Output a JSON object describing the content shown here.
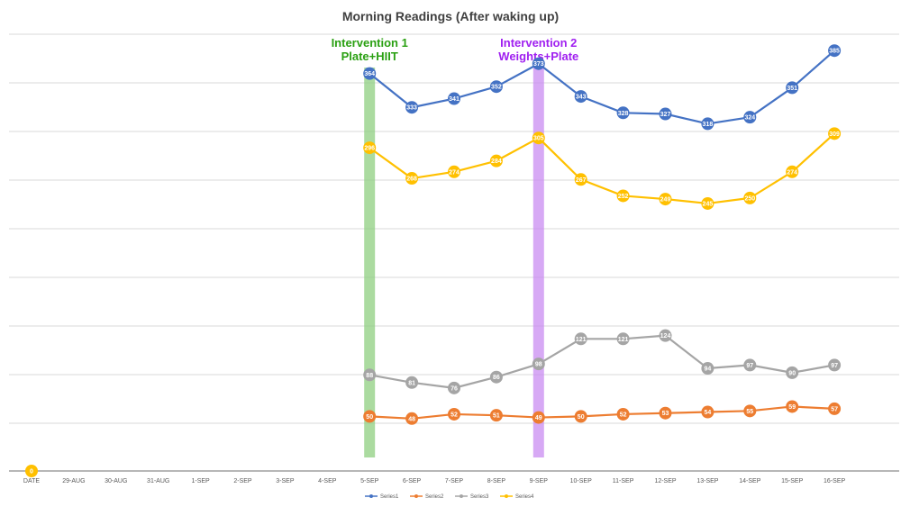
{
  "chart_data": {
    "type": "line",
    "title": "Morning Readings (After waking up)",
    "categories": [
      "DATE",
      "29-AUG",
      "30-AUG",
      "31-AUG",
      "1-SEP",
      "2-SEP",
      "3-SEP",
      "4-SEP",
      "5-SEP",
      "6-SEP",
      "7-SEP",
      "8-SEP",
      "9-SEP",
      "10-SEP",
      "11-SEP",
      "12-SEP",
      "13-SEP",
      "14-SEP",
      "15-SEP",
      "16-SEP"
    ],
    "ylim": [
      0,
      400
    ],
    "grid": true,
    "legend_position": "bottom",
    "series": [
      {
        "name": "Series1",
        "color": "#4472c4",
        "values": [
          null,
          null,
          null,
          null,
          null,
          null,
          null,
          null,
          364,
          333,
          341,
          352,
          373,
          343,
          328,
          327,
          318,
          324,
          351,
          385
        ]
      },
      {
        "name": "Series2",
        "color": "#ed7d31",
        "values": [
          null,
          null,
          null,
          null,
          null,
          null,
          null,
          null,
          50,
          48,
          52,
          51,
          49,
          50,
          52,
          53,
          54,
          55,
          59,
          57
        ]
      },
      {
        "name": "Series3",
        "color": "#a5a5a5",
        "values": [
          null,
          null,
          null,
          null,
          null,
          null,
          null,
          null,
          88,
          81,
          76,
          86,
          98,
          121,
          121,
          124,
          94,
          97,
          90,
          97
        ]
      },
      {
        "name": "Series4",
        "color": "#ffc000",
        "values": [
          0,
          null,
          null,
          null,
          null,
          null,
          null,
          null,
          296,
          268,
          274,
          284,
          305,
          267,
          252,
          249,
          245,
          250,
          274,
          309
        ]
      }
    ],
    "annotations": [
      {
        "line1": "Intervention 1",
        "line2": "Plate+HIIT",
        "at": "5-SEP",
        "color": "#2aa012",
        "band_color": "#8fcf80"
      },
      {
        "line1": "Intervention 2",
        "line2": "Weights+Plate",
        "at": "9-SEP",
        "color": "#a020f0",
        "band_color": "#c98cf2"
      }
    ]
  }
}
